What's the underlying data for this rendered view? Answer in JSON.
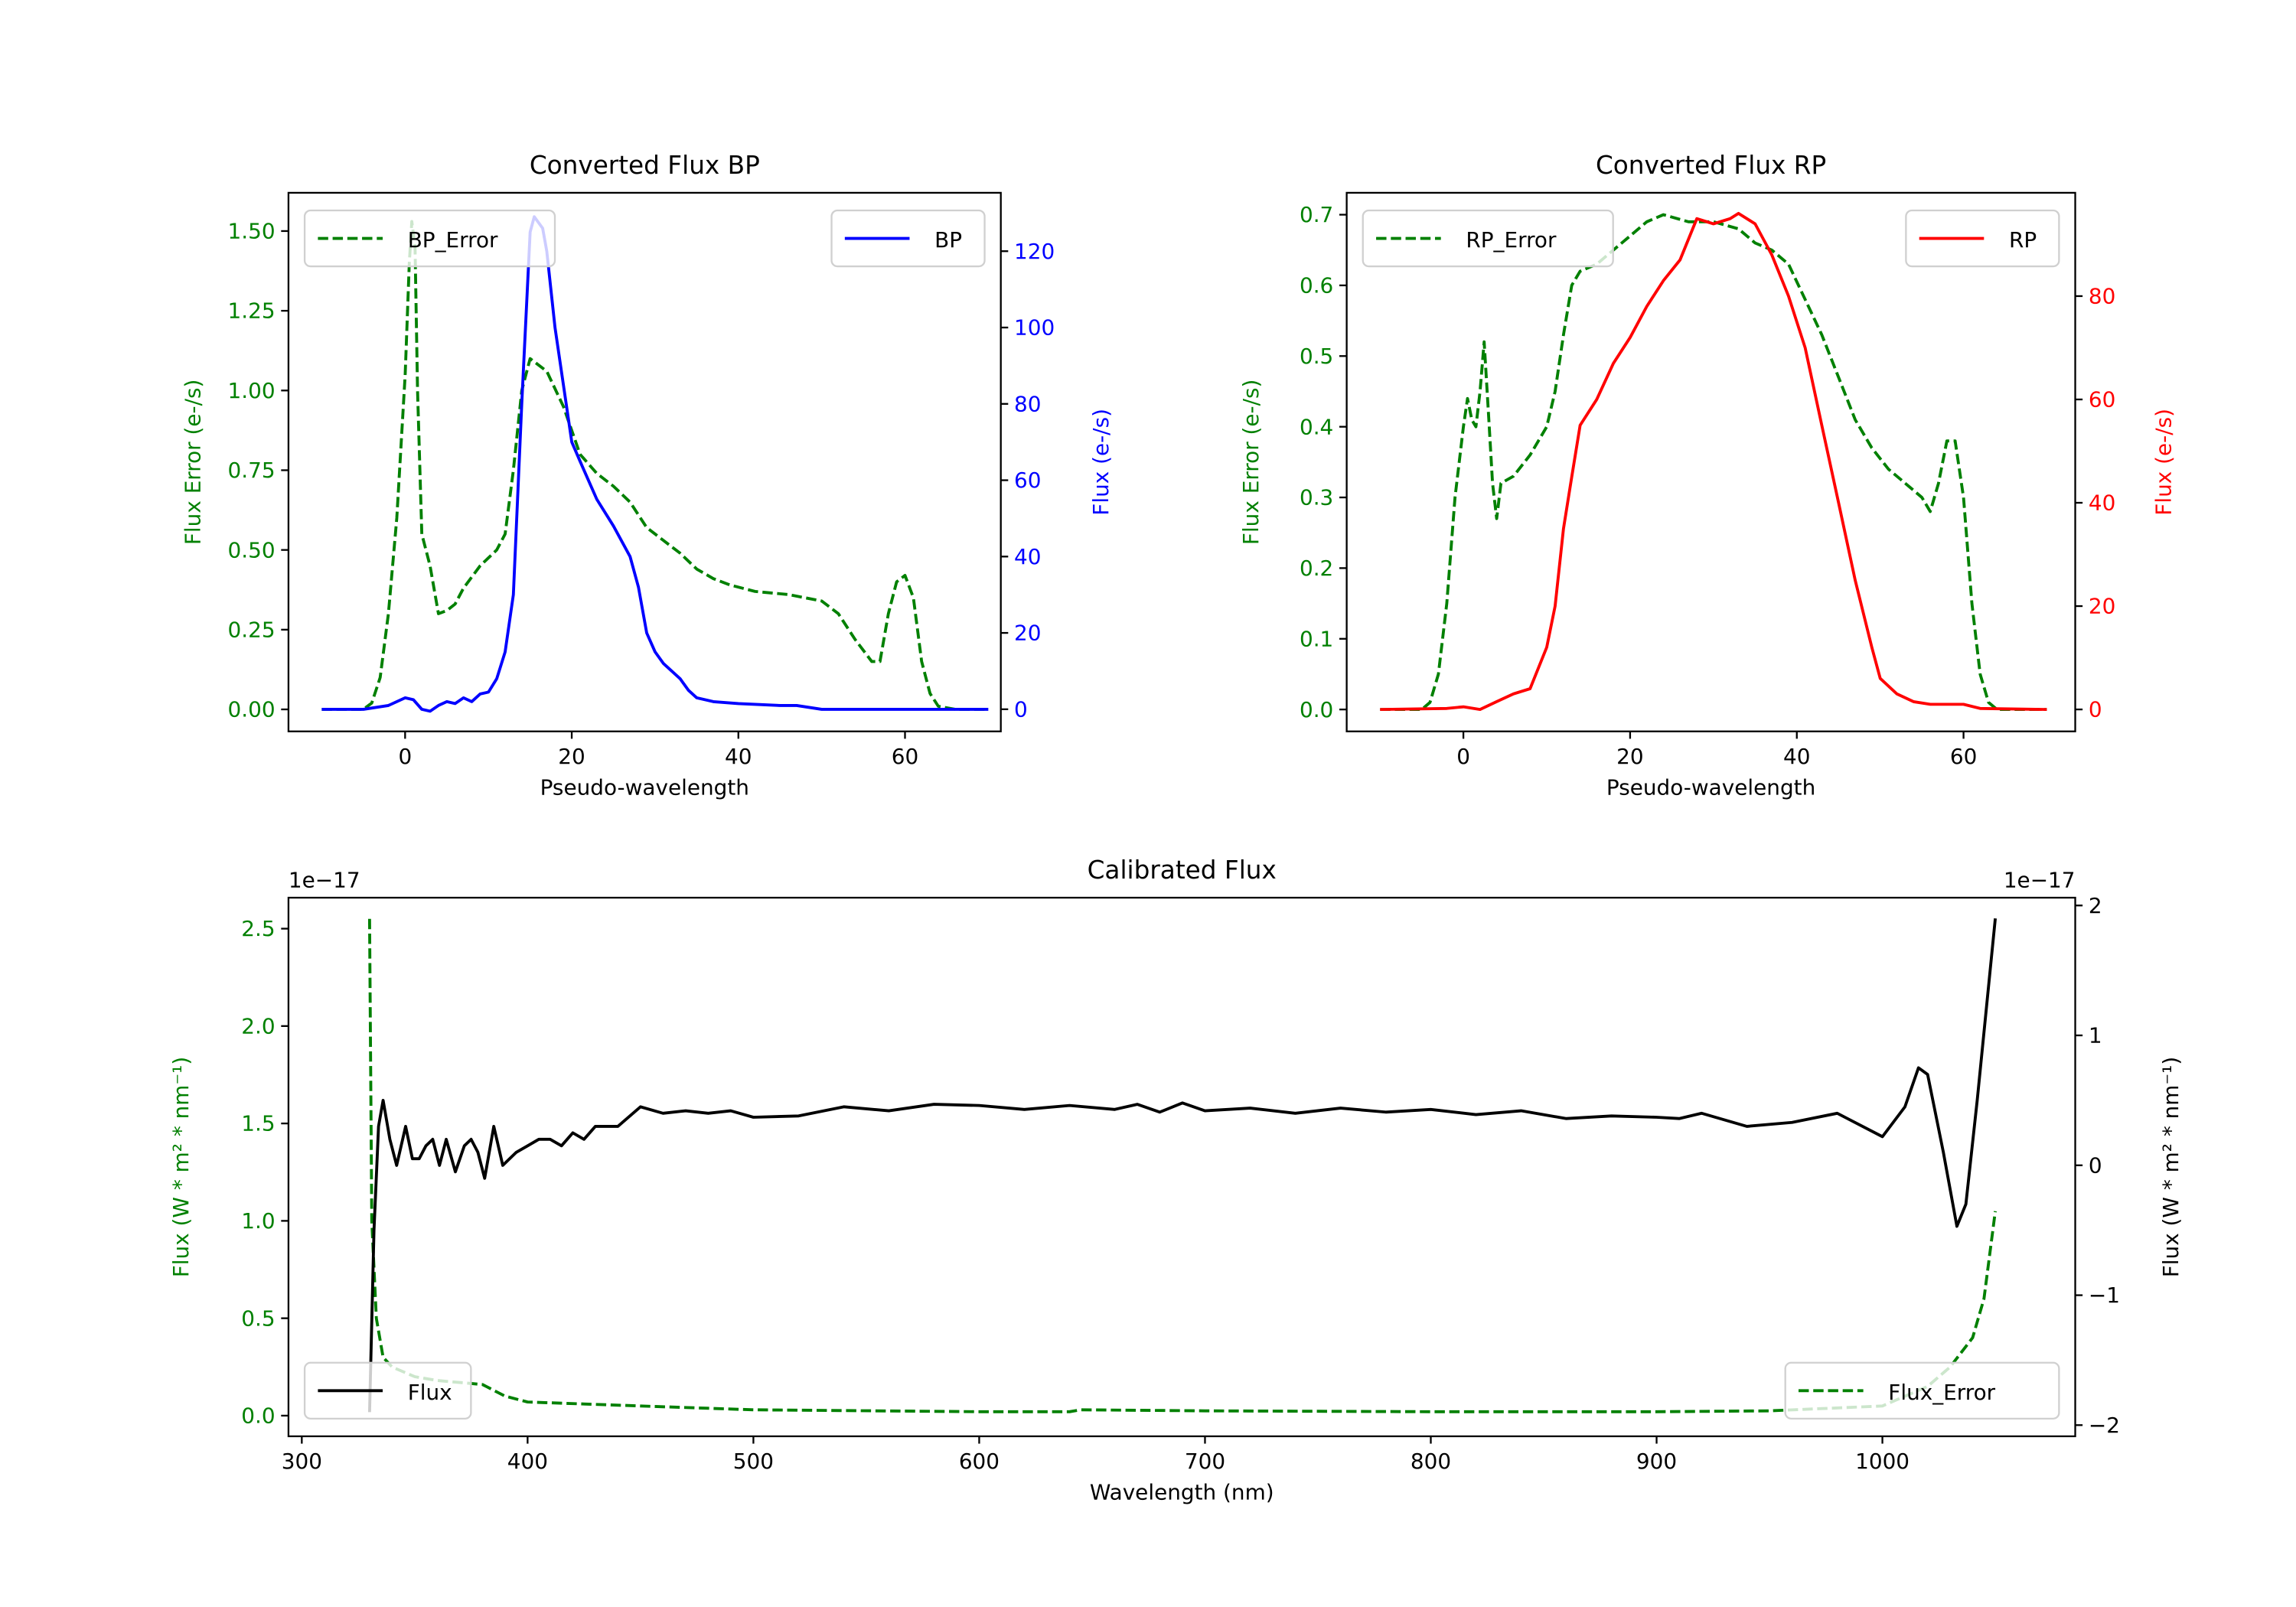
{
  "chart_data": [
    {
      "type": "line",
      "title": "Converted Flux BP",
      "xlabel": "Pseudo-wavelength",
      "ylabel_left": "Flux Error (e-/s)",
      "ylabel_right": "Flux (e-/s)",
      "xlim": [
        -14,
        71.5
      ],
      "ylim_left": [
        -0.069,
        1.62
      ],
      "ylim_right": [
        -5.8,
        135.3
      ],
      "xticks": [
        0,
        20,
        40,
        60
      ],
      "xtick_labels": [
        "0",
        "20",
        "40",
        "60"
      ],
      "yticks_left": [
        0,
        0.25,
        0.5,
        0.75,
        1.0,
        1.25,
        1.5
      ],
      "ytick_labels_left": [
        "0.00",
        "0.25",
        "0.50",
        "0.75",
        "1.00",
        "1.25",
        "1.50"
      ],
      "yticks_right": [
        0,
        20,
        40,
        60,
        80,
        100,
        120
      ],
      "ytick_labels_right": [
        "0",
        "20",
        "40",
        "60",
        "80",
        "100",
        "120"
      ],
      "left_color": "#008000",
      "right_color": "#0000ff",
      "grid": false,
      "legend_left": {
        "label": "BP_Error",
        "placement": "upper-left"
      },
      "legend_right": {
        "label": "BP",
        "placement": "upper-right"
      },
      "series": [
        {
          "name": "BP_Error",
          "axis": "left",
          "color": "#008000",
          "style": "dashed",
          "x": [
            -10,
            -5,
            -4,
            -3,
            -2,
            -1,
            0,
            0.5,
            0.8,
            1.2,
            1.5,
            2,
            2.5,
            3,
            4,
            5,
            6,
            7,
            9,
            11,
            12,
            13,
            14,
            15,
            17,
            19,
            21,
            23,
            25,
            27,
            29,
            31,
            33,
            35,
            37,
            39,
            42,
            46,
            50,
            52,
            54,
            56,
            57,
            58,
            59,
            60,
            61,
            62,
            63,
            64,
            66,
            70
          ],
          "y": [
            0,
            0,
            0.02,
            0.1,
            0.3,
            0.6,
            1.05,
            1.4,
            1.53,
            1.45,
            1.0,
            0.55,
            0.5,
            0.45,
            0.3,
            0.31,
            0.33,
            0.38,
            0.45,
            0.5,
            0.55,
            0.75,
            1.0,
            1.1,
            1.06,
            0.95,
            0.8,
            0.74,
            0.7,
            0.65,
            0.57,
            0.53,
            0.49,
            0.44,
            0.41,
            0.39,
            0.37,
            0.36,
            0.34,
            0.3,
            0.22,
            0.15,
            0.15,
            0.3,
            0.4,
            0.42,
            0.35,
            0.15,
            0.05,
            0.01,
            0,
            0
          ]
        },
        {
          "name": "BP",
          "axis": "right",
          "color": "#0000ff",
          "style": "solid",
          "x": [
            -10,
            -5,
            -2,
            0,
            1,
            2,
            3,
            4,
            5,
            6,
            7,
            8,
            9,
            10,
            11,
            12,
            13,
            14,
            15,
            15.5,
            16.5,
            17,
            18,
            19,
            20,
            21,
            23,
            25,
            27,
            28,
            29,
            30,
            31,
            33,
            34,
            35,
            37,
            40,
            45,
            47,
            50,
            55,
            70
          ],
          "y": [
            0,
            0,
            1,
            3,
            2.5,
            0,
            -0.5,
            1,
            2,
            1.5,
            3,
            2,
            4,
            4.5,
            8,
            15,
            30,
            80,
            125,
            129,
            126,
            120,
            100,
            85,
            70,
            65,
            55,
            48,
            40,
            32,
            20,
            15,
            12,
            8,
            5,
            3,
            2,
            1.5,
            1,
            1,
            0,
            0,
            0
          ]
        }
      ]
    },
    {
      "type": "line",
      "title": "Converted Flux RP",
      "xlabel": "Pseudo-wavelength",
      "ylabel_left": "Flux Error (e-/s)",
      "ylabel_right": "Flux (e-/s)",
      "xlim": [
        -14,
        73.4
      ],
      "ylim_left": [
        -0.031,
        0.731
      ],
      "ylim_right": [
        -4.25,
        100
      ],
      "xticks": [
        0,
        20,
        40,
        60
      ],
      "xtick_labels": [
        "0",
        "20",
        "40",
        "60"
      ],
      "yticks_left": [
        0,
        0.1,
        0.2,
        0.3,
        0.4,
        0.5,
        0.6,
        0.7
      ],
      "ytick_labels_left": [
        "0.0",
        "0.1",
        "0.2",
        "0.3",
        "0.4",
        "0.5",
        "0.6",
        "0.7"
      ],
      "yticks_right": [
        0,
        20,
        40,
        60,
        80
      ],
      "ytick_labels_right": [
        "0",
        "20",
        "40",
        "60",
        "80"
      ],
      "left_color": "#008000",
      "right_color": "#ff0000",
      "grid": false,
      "legend_left": {
        "label": "RP_Error",
        "placement": "upper-left"
      },
      "legend_right": {
        "label": "RP",
        "placement": "upper-right"
      },
      "series": [
        {
          "name": "RP_Error",
          "axis": "left",
          "color": "#008000",
          "style": "dashed",
          "x": [
            -10,
            -5,
            -4,
            -3,
            -2,
            -1,
            0,
            0.5,
            1,
            1.5,
            2,
            2.5,
            3,
            3.5,
            4,
            4.5,
            6,
            8,
            10,
            11,
            12,
            13,
            14,
            16,
            18,
            20,
            22,
            24,
            27,
            30,
            33,
            35,
            37,
            39,
            41,
            43,
            45,
            47,
            49,
            51,
            53,
            55,
            56,
            57,
            58,
            59,
            60,
            61,
            62,
            63,
            64,
            70
          ],
          "y": [
            0,
            0,
            0.01,
            0.05,
            0.15,
            0.3,
            0.4,
            0.44,
            0.41,
            0.4,
            0.45,
            0.52,
            0.42,
            0.32,
            0.27,
            0.32,
            0.33,
            0.36,
            0.4,
            0.45,
            0.53,
            0.6,
            0.62,
            0.63,
            0.65,
            0.67,
            0.69,
            0.7,
            0.69,
            0.69,
            0.68,
            0.66,
            0.65,
            0.63,
            0.58,
            0.53,
            0.47,
            0.41,
            0.37,
            0.34,
            0.32,
            0.3,
            0.28,
            0.32,
            0.38,
            0.38,
            0.3,
            0.15,
            0.05,
            0.01,
            0,
            0
          ]
        },
        {
          "name": "RP",
          "axis": "right",
          "color": "#ff0000",
          "style": "solid",
          "x": [
            -10,
            -2,
            0,
            2,
            4,
            6,
            8,
            10,
            11,
            12,
            13,
            14,
            16,
            18,
            20,
            22,
            24,
            26,
            28,
            30,
            32,
            33,
            35,
            37,
            39,
            41,
            43,
            45,
            47,
            49,
            50,
            52,
            54,
            56,
            58,
            60,
            62,
            70
          ],
          "y": [
            0,
            0.2,
            0.5,
            0,
            1.5,
            3,
            4,
            12,
            20,
            35,
            45,
            55,
            60,
            67,
            72,
            78,
            83,
            87,
            95,
            94,
            95,
            96,
            94,
            88,
            80,
            70,
            55,
            40,
            25,
            12,
            6,
            3,
            1.5,
            1,
            1,
            1,
            0.2,
            0
          ]
        }
      ]
    },
    {
      "type": "line",
      "title": "Calibrated Flux",
      "xlabel": "Wavelength (nm)",
      "ylabel_left": "Flux (W * m² * nm⁻¹)",
      "ylabel_right": "Flux (W * m² * nm⁻¹)",
      "offset_left": "1e−17",
      "offset_right": "1e−17",
      "xlim": [
        294.1,
        1085.4
      ],
      "ylim_left": [
        -0.106,
        2.659
      ],
      "ylim_right": [
        -2.086,
        2.06
      ],
      "xticks": [
        300,
        400,
        500,
        600,
        700,
        800,
        900,
        1000
      ],
      "xtick_labels": [
        "300",
        "400",
        "500",
        "600",
        "700",
        "800",
        "900",
        "1000"
      ],
      "yticks_left": [
        0,
        0.5,
        1.0,
        1.5,
        2.0,
        2.5
      ],
      "ytick_labels_left": [
        "0.0",
        "0.5",
        "1.0",
        "1.5",
        "2.0",
        "2.5"
      ],
      "yticks_right": [
        -2,
        -1,
        0,
        1,
        2
      ],
      "ytick_labels_right": [
        "−2",
        "−1",
        "0",
        "1",
        "2"
      ],
      "left_color": "#008000",
      "right_color": "#000000",
      "grid": false,
      "legend_left": {
        "label": "Flux",
        "placement": "lower-left"
      },
      "legend_right": {
        "label": "Flux_Error",
        "placement": "lower-right"
      },
      "series": [
        {
          "name": "Flux_Error",
          "axis": "left",
          "color": "#008000",
          "style": "dashed",
          "x": [
            330,
            331,
            333,
            336,
            340,
            350,
            360,
            380,
            390,
            400,
            450,
            500,
            600,
            640,
            645,
            700,
            800,
            900,
            950,
            1000,
            1020,
            1030,
            1040,
            1045,
            1050
          ],
          "y": [
            2.55,
            1.0,
            0.5,
            0.3,
            0.25,
            0.2,
            0.18,
            0.16,
            0.1,
            0.07,
            0.05,
            0.03,
            0.02,
            0.02,
            0.03,
            0.025,
            0.02,
            0.02,
            0.025,
            0.05,
            0.15,
            0.25,
            0.4,
            0.6,
            1.05
          ]
        },
        {
          "name": "Flux",
          "axis": "right",
          "color": "#000000",
          "style": "solid",
          "x": [
            330,
            332,
            334,
            336,
            339,
            342,
            346,
            349,
            352,
            355,
            358,
            361,
            364,
            368,
            372,
            375,
            378,
            381,
            385,
            389,
            395,
            400,
            405,
            410,
            415,
            420,
            425,
            430,
            440,
            450,
            460,
            470,
            480,
            490,
            500,
            520,
            540,
            560,
            580,
            600,
            620,
            640,
            660,
            670,
            680,
            690,
            700,
            720,
            740,
            760,
            780,
            800,
            820,
            840,
            860,
            880,
            900,
            910,
            920,
            940,
            960,
            980,
            1000,
            1010,
            1016,
            1020,
            1027,
            1033,
            1037,
            1042,
            1050
          ],
          "y": [
            -1.9,
            -0.5,
            0.3,
            0.5,
            0.2,
            0.0,
            0.3,
            0.05,
            0.05,
            0.15,
            0.2,
            0.0,
            0.2,
            -0.05,
            0.15,
            0.2,
            0.1,
            -0.1,
            0.3,
            0.0,
            0.1,
            0.15,
            0.2,
            0.2,
            0.15,
            0.25,
            0.2,
            0.3,
            0.3,
            0.45,
            0.4,
            0.42,
            0.4,
            0.42,
            0.37,
            0.38,
            0.45,
            0.42,
            0.47,
            0.46,
            0.43,
            0.46,
            0.43,
            0.47,
            0.41,
            0.48,
            0.42,
            0.44,
            0.4,
            0.44,
            0.41,
            0.43,
            0.39,
            0.42,
            0.36,
            0.38,
            0.37,
            0.36,
            0.4,
            0.3,
            0.33,
            0.4,
            0.22,
            0.45,
            0.75,
            0.7,
            0.1,
            -0.47,
            -0.3,
            0.5,
            1.9
          ]
        }
      ]
    }
  ]
}
